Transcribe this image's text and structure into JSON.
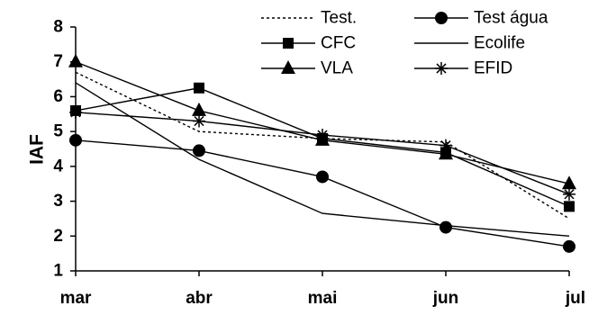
{
  "chart_data": {
    "type": "line",
    "title": "",
    "xlabel": "",
    "ylabel": "IAF",
    "categories": [
      "mar",
      "abr",
      "mai",
      "jun",
      "jul"
    ],
    "y_ticks": [
      "1",
      "2",
      "3",
      "4",
      "5",
      "6",
      "7",
      "8"
    ],
    "ylim": [
      1,
      8
    ],
    "grid": false,
    "legend_position": "top-right",
    "series": [
      {
        "name": "Test.",
        "marker": "none",
        "line_style": "dotted",
        "values": [
          6.7,
          5.0,
          4.8,
          4.7,
          2.5
        ]
      },
      {
        "name": "Test água",
        "marker": "circle",
        "line_style": "solid",
        "values": [
          4.75,
          4.45,
          3.7,
          2.25,
          1.7
        ]
      },
      {
        "name": "CFC",
        "marker": "square",
        "line_style": "solid",
        "values": [
          5.6,
          6.25,
          4.8,
          4.4,
          2.85
        ]
      },
      {
        "name": "Ecolife",
        "marker": "none",
        "line_style": "solid",
        "values": [
          6.4,
          4.2,
          2.65,
          2.3,
          2.0
        ]
      },
      {
        "name": "VLA",
        "marker": "triangle",
        "line_style": "solid",
        "values": [
          7.0,
          5.6,
          4.75,
          4.35,
          3.5
        ]
      },
      {
        "name": "EFID",
        "marker": "asterisk",
        "line_style": "solid",
        "values": [
          5.55,
          5.3,
          4.9,
          4.6,
          3.2
        ]
      }
    ]
  }
}
